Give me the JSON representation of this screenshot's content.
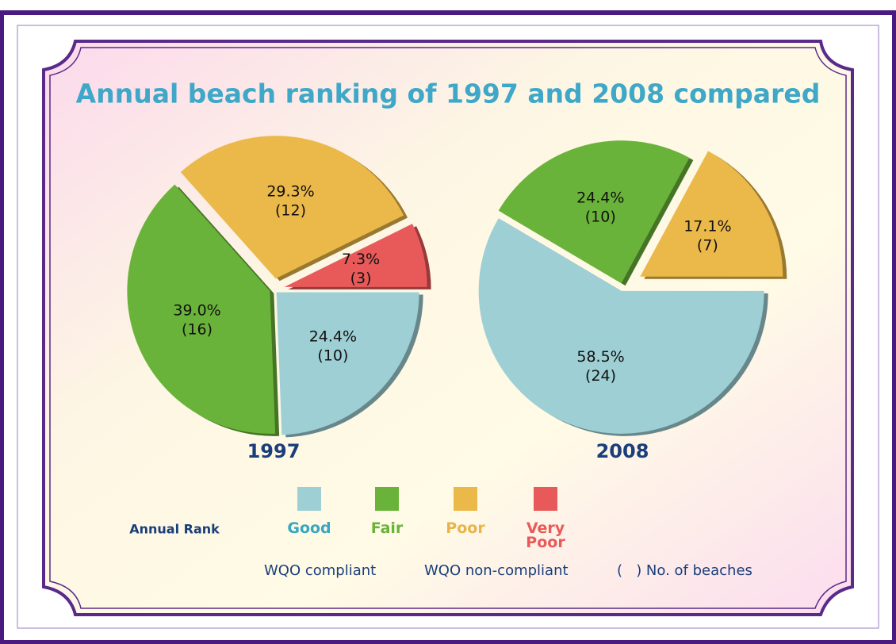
{
  "title": "Annual beach ranking of 1997 and 2008 compared",
  "legend": {
    "title": "Annual Rank",
    "categories": [
      "Good",
      "Fair",
      "Poor",
      "Very Poor"
    ],
    "colors": [
      "#9ecfd4",
      "#6ab33a",
      "#ebb84a",
      "#e85a5a"
    ],
    "text_colors": [
      "#3aa6c0",
      "#6ab33a",
      "#e8b44a",
      "#e85a5a"
    ],
    "notes": [
      "WQO compliant",
      "WQO non-compliant",
      "(   ) No. of beaches"
    ]
  },
  "chart_data": [
    {
      "type": "pie",
      "label": "1997",
      "categories": [
        "Good",
        "Fair",
        "Poor",
        "Very Poor"
      ],
      "values": [
        24.4,
        39.0,
        29.3,
        7.3
      ],
      "value_labels": [
        "24.4%",
        "39.0%",
        "29.3%",
        "7.3%"
      ],
      "counts": [
        10,
        16,
        12,
        3
      ],
      "count_labels": [
        "(10)",
        "(16)",
        "(12)",
        "(3)"
      ],
      "colors": [
        "#9ecfd4",
        "#6ab33a",
        "#ebb84a",
        "#e85a5a"
      ]
    },
    {
      "type": "pie",
      "label": "2008",
      "categories": [
        "Good",
        "Fair",
        "Poor"
      ],
      "values": [
        58.5,
        24.4,
        17.1
      ],
      "value_labels": [
        "58.5%",
        "24.4%",
        "17.1%"
      ],
      "counts": [
        24,
        10,
        7
      ],
      "count_labels": [
        "(24)",
        "(10)",
        "(7)"
      ],
      "colors": [
        "#9ecfd4",
        "#6ab33a",
        "#ebb84a"
      ]
    }
  ]
}
